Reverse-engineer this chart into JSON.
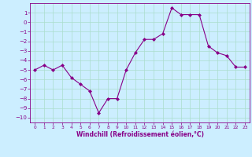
{
  "x": [
    0,
    1,
    2,
    3,
    4,
    5,
    6,
    7,
    8,
    9,
    10,
    11,
    12,
    13,
    14,
    15,
    16,
    17,
    18,
    19,
    20,
    21,
    22,
    23
  ],
  "y": [
    -5.0,
    -4.5,
    -5.0,
    -4.5,
    -5.8,
    -6.5,
    -7.2,
    -9.5,
    -8.0,
    -8.0,
    -5.0,
    -3.2,
    -1.8,
    -1.8,
    -1.2,
    1.5,
    0.8,
    0.8,
    0.8,
    -2.5,
    -3.2,
    -3.5,
    -4.7,
    -4.7
  ],
  "line_color": "#880088",
  "marker": "D",
  "marker_size": 2,
  "bg_color": "#cceeff",
  "grid_color": "#aaddcc",
  "xlabel": "Windchill (Refroidissement éolien,°C)",
  "xlabel_color": "#880088",
  "tick_color": "#880088",
  "ylim": [
    -10.5,
    2.0
  ],
  "xlim": [
    -0.5,
    23.5
  ],
  "yticks": [
    1,
    0,
    -1,
    -2,
    -3,
    -4,
    -5,
    -6,
    -7,
    -8,
    -9,
    -10
  ],
  "xticks": [
    0,
    1,
    2,
    3,
    4,
    5,
    6,
    7,
    8,
    9,
    10,
    11,
    12,
    13,
    14,
    15,
    16,
    17,
    18,
    19,
    20,
    21,
    22,
    23
  ],
  "figsize": [
    3.2,
    2.0
  ],
  "dpi": 100
}
